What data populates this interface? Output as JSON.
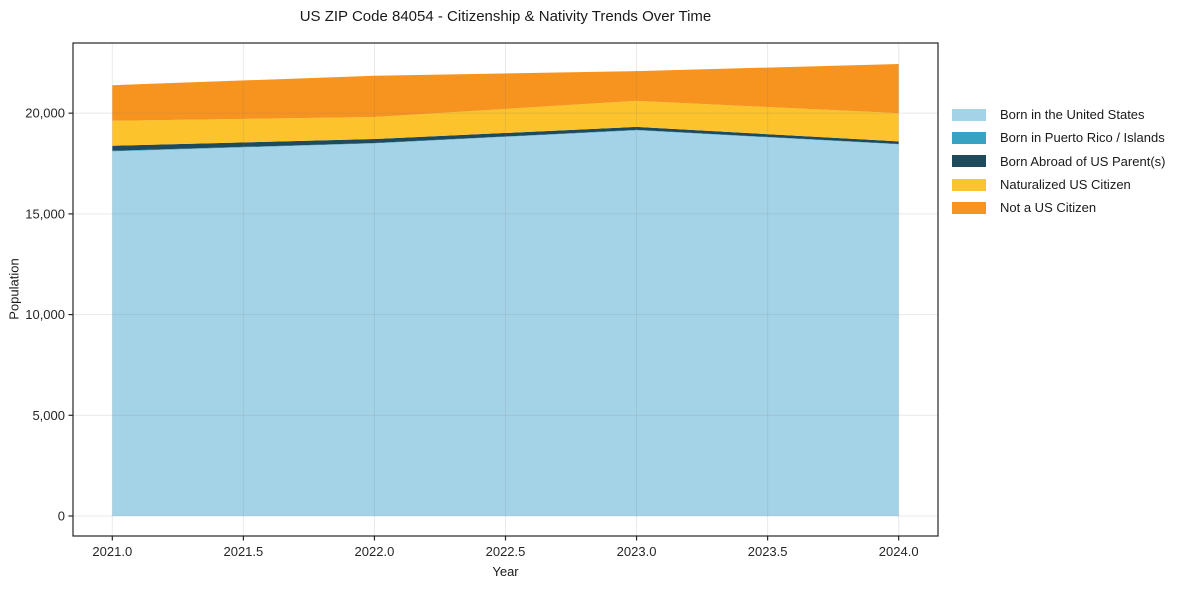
{
  "chart_data": {
    "type": "area",
    "stacked": true,
    "title": "US ZIP Code 84054 - Citizenship & Nativity Trends Over Time",
    "xlabel": "Year",
    "ylabel": "Population",
    "x": [
      2021,
      2022,
      2023,
      2024
    ],
    "series": [
      {
        "name": "Born in the United States",
        "color": "#a4d3e8",
        "values": [
          18100,
          18500,
          19150,
          18450
        ]
      },
      {
        "name": "Born in Puerto Rico / Islands",
        "color": "#38a2c2",
        "values": [
          30,
          20,
          20,
          20
        ]
      },
      {
        "name": "Born Abroad of US Parent(s)",
        "color": "#1f4a5c",
        "values": [
          250,
          200,
          150,
          130
        ]
      },
      {
        "name": "Naturalized US Citizen",
        "color": "#fcc32d",
        "values": [
          1240,
          1090,
          1290,
          1400
        ]
      },
      {
        "name": "Not a US Citizen",
        "color": "#f7941f",
        "values": [
          1770,
          2050,
          1480,
          2440
        ]
      }
    ],
    "xticks": [
      "2021.0",
      "2021.5",
      "2022.0",
      "2022.5",
      "2023.0",
      "2023.5",
      "2024.0"
    ],
    "xtick_values": [
      2021,
      2021.5,
      2022,
      2022.5,
      2023,
      2023.5,
      2024
    ],
    "yticks": [
      "0",
      "5,000",
      "10,000",
      "15,000",
      "20,000"
    ],
    "ytick_values": [
      0,
      5000,
      10000,
      15000,
      20000
    ],
    "x_range": [
      2020.85,
      2024.15
    ],
    "y_range": [
      -993,
      23484
    ],
    "grid": true,
    "legend_position": "right",
    "colors": {
      "axis": "#262626",
      "grid": "rgba(120,120,120,0.16)",
      "text": "#1a1a1a",
      "background": "#ffffff"
    }
  }
}
